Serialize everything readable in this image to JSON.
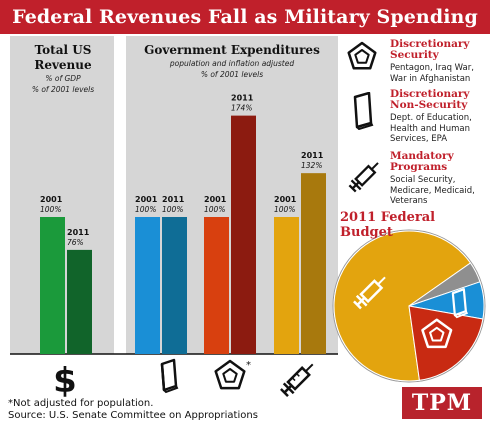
{
  "title": "Federal Revenues Fall as Military Spending Rockets",
  "colors": {
    "banner": "#c0202b",
    "panel": "#d6d6d6",
    "total_2001": "#1b9a3b",
    "total_2011": "#11642a",
    "nonsec_2001": "#1a8fd6",
    "nonsec_2011": "#0f6d96",
    "security_2001": "#d8400f",
    "security_2011": "#8c1b10",
    "mandatory_2001": "#e3a40e",
    "mandatory_2011": "#a8790d"
  },
  "chart_data": [
    {
      "type": "bar",
      "title": "Total US Revenue",
      "subtitle_lines": [
        "% of GDP",
        "% of 2001 levels"
      ],
      "bars": [
        {
          "year": "2001",
          "value": 100,
          "label": "100%",
          "group": "revenue"
        },
        {
          "year": "2011",
          "value": 76,
          "label": "76%",
          "group": "revenue"
        }
      ]
    },
    {
      "type": "bar",
      "title": "Government Expenditures",
      "subtitle_lines": [
        "population and inflation adjusted",
        "% of 2001 levels"
      ],
      "bars": [
        {
          "year": "2001",
          "value": 100,
          "label": "100%",
          "group": "non-security"
        },
        {
          "year": "2011",
          "value": 100,
          "label": "100%",
          "group": "non-security"
        },
        {
          "year": "2001",
          "value": 100,
          "label": "100%",
          "group": "security"
        },
        {
          "year": "2011",
          "value": 174,
          "label": "174%",
          "group": "security"
        },
        {
          "year": "2001",
          "value": 100,
          "label": "100%",
          "group": "mandatory"
        },
        {
          "year": "2011",
          "value": 132,
          "label": "132%",
          "group": "mandatory"
        }
      ]
    },
    {
      "type": "pie",
      "title": "2011 Federal Budget",
      "slices": [
        {
          "name": "Mandatory Programs",
          "value": 0.675,
          "color": "#e3a40e"
        },
        {
          "name": "Discretionary Non-Security",
          "value": 0.045,
          "color": "#8f8f8f"
        },
        {
          "name": "Discretionary Non-Security",
          "value": 0.08,
          "color": "#1a8fd6"
        },
        {
          "name": "Discretionary Security",
          "value": 0.2,
          "color": "#c82a12"
        }
      ]
    }
  ],
  "legend": [
    {
      "title_lines": [
        "Discretionary",
        "Security"
      ],
      "desc_lines": [
        "Pentagon, Iraq War,",
        "War in Afghanistan"
      ],
      "icon": "pentagon-icon"
    },
    {
      "title_lines": [
        "Discretionary",
        "Non-Security"
      ],
      "desc_lines": [
        "Dept. of Education,",
        "Health and Human",
        "Services, EPA"
      ],
      "icon": "book-icon"
    },
    {
      "title_lines": [
        "Mandatory",
        "Programs"
      ],
      "desc_lines": [
        "Social Security,",
        "Medicare, Medicaid,",
        "Veterans"
      ],
      "icon": "syringe-icon"
    }
  ],
  "bottom_icons": {
    "revenue": "dollar-icon",
    "nonsec": "book-icon",
    "security": "pentagon-icon",
    "security_mark": "*",
    "mandatory": "syringe-icon"
  },
  "dollar_sign": "$",
  "footnotes": [
    "*Not adjusted for population.",
    "Source: U.S. Senate Committee on Appropriations"
  ],
  "logo": "TPM"
}
